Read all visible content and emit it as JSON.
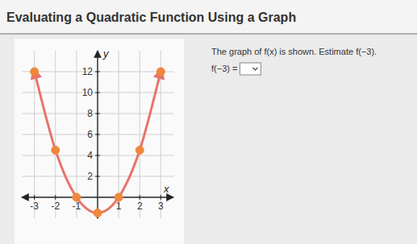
{
  "header": {
    "title": "Evaluating a Quadratic Function Using a Graph"
  },
  "question": {
    "prompt": "The graph of f(x) is shown. Estimate f(−3).",
    "answer_label": "f(−3) ="
  },
  "chart_data": {
    "type": "line",
    "x_label": "x",
    "y_label": "y",
    "x": [
      -3,
      -2,
      -1,
      0,
      1,
      2,
      3
    ],
    "series": [
      {
        "color": "#e8736a",
        "marker": "circle",
        "values": [
          12,
          4.5,
          0,
          -1.5,
          0,
          4.5,
          12
        ]
      }
    ],
    "xlim": [
      -3.6,
      3.6
    ],
    "ylim": [
      -2,
      14
    ],
    "xticks": [
      -3,
      -2,
      -1,
      1,
      2,
      3
    ],
    "yticks": [
      2,
      4,
      6,
      8,
      10,
      12
    ],
    "grid": true
  }
}
